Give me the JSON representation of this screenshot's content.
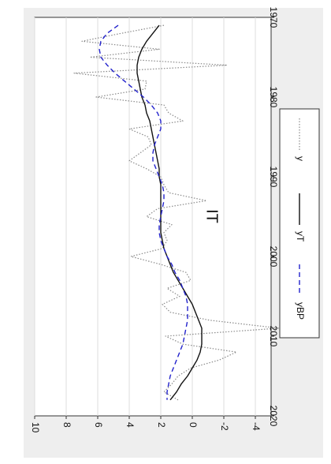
{
  "chart_data": {
    "type": "line",
    "orientation": "rotated-90-clockwise",
    "title": "IT",
    "xlabel": "",
    "ylabel": "",
    "xlim": [
      1970,
      2020
    ],
    "ylim": [
      -5,
      10
    ],
    "x_ticks": [
      1970,
      1980,
      1990,
      2000,
      2010,
      2020
    ],
    "y_ticks": [
      10,
      8,
      6,
      4,
      2,
      0,
      -2,
      -4
    ],
    "y_tick_labels": [
      "10",
      "8",
      "6",
      "4",
      "2",
      "0",
      "-2",
      "-4"
    ],
    "grid": true,
    "legend_position": "bottom",
    "colors": {
      "y": "#8a8a8a",
      "yT": "#111111",
      "yBP": "#2222cc",
      "grid": "#dcdcdc",
      "panel": "#eeeeee"
    },
    "series": [
      {
        "name": "y",
        "style": "dotted",
        "x": [
          1971,
          1972,
          1973,
          1974,
          1975,
          1976,
          1977,
          1978,
          1979,
          1980,
          1981,
          1982,
          1983,
          1984,
          1985,
          1986,
          1987,
          1988,
          1989,
          1990,
          1991,
          1992,
          1993,
          1994,
          1995,
          1996,
          1997,
          1998,
          1999,
          2000,
          2001,
          2002,
          2003,
          2004,
          2005,
          2006,
          2007,
          2008,
          2009,
          2010,
          2011,
          2012,
          2013,
          2014,
          2015,
          2016,
          2017,
          2018
        ],
        "y": [
          1.8,
          4.5,
          7.0,
          2.1,
          6.5,
          -2.2,
          7.5,
          2.9,
          3.0,
          6.1,
          1.8,
          1.5,
          0.6,
          4.0,
          2.8,
          2.6,
          3.3,
          4.0,
          2.9,
          2.0,
          1.8,
          1.5,
          -0.9,
          2.2,
          2.9,
          1.3,
          1.8,
          1.6,
          1.9,
          3.9,
          2.0,
          0.4,
          0.1,
          1.6,
          0.8,
          1.9,
          1.4,
          -1.1,
          -5.5,
          1.7,
          0.6,
          -2.8,
          -1.7,
          0.1,
          0.9,
          1.3,
          1.8,
          0.9
        ]
      },
      {
        "name": "yT",
        "style": "solid",
        "x": [
          1971,
          1972,
          1973,
          1974,
          1975,
          1976,
          1977,
          1978,
          1979,
          1980,
          1981,
          1982,
          1983,
          1984,
          1985,
          1986,
          1987,
          1988,
          1989,
          1990,
          1991,
          1992,
          1993,
          1994,
          1995,
          1996,
          1997,
          1998,
          1999,
          2000,
          2001,
          2002,
          2003,
          2004,
          2005,
          2006,
          2007,
          2008,
          2009,
          2010,
          2011,
          2012,
          2013,
          2014,
          2015,
          2016,
          2017,
          2018
        ],
        "y": [
          2.1,
          2.5,
          2.9,
          3.2,
          3.4,
          3.5,
          3.5,
          3.4,
          3.3,
          3.2,
          3.0,
          2.9,
          2.7,
          2.6,
          2.5,
          2.4,
          2.3,
          2.2,
          2.1,
          2.1,
          2.0,
          2.0,
          2.0,
          2.0,
          2.0,
          2.0,
          2.0,
          1.9,
          1.8,
          1.6,
          1.4,
          1.2,
          0.9,
          0.6,
          0.3,
          0.0,
          -0.2,
          -0.4,
          -0.6,
          -0.6,
          -0.6,
          -0.5,
          -0.3,
          0.0,
          0.3,
          0.7,
          1.0,
          1.4
        ]
      },
      {
        "name": "yBP",
        "style": "dashed",
        "x": [
          1971,
          1972,
          1973,
          1974,
          1975,
          1976,
          1977,
          1978,
          1979,
          1980,
          1981,
          1982,
          1983,
          1984,
          1985,
          1986,
          1987,
          1988,
          1989,
          1990,
          1991,
          1992,
          1993,
          1994,
          1995,
          1996,
          1997,
          1998,
          1999,
          2000,
          2001,
          2002,
          2003,
          2004,
          2005,
          2006,
          2007,
          2008,
          2009,
          2010,
          2011,
          2012,
          2013,
          2014,
          2015,
          2016,
          2017,
          2018
        ],
        "y": [
          4.7,
          5.4,
          5.8,
          5.9,
          5.8,
          5.4,
          4.9,
          4.3,
          3.7,
          3.1,
          2.6,
          2.2,
          2.0,
          2.0,
          2.2,
          2.4,
          2.5,
          2.5,
          2.3,
          2.1,
          1.9,
          1.8,
          1.8,
          1.9,
          2.0,
          2.1,
          2.1,
          2.0,
          1.8,
          1.6,
          1.3,
          1.1,
          0.8,
          0.6,
          0.4,
          0.3,
          0.3,
          0.3,
          0.4,
          0.5,
          0.6,
          0.8,
          1.0,
          1.2,
          1.4,
          1.5,
          1.6,
          1.6
        ]
      }
    ]
  }
}
